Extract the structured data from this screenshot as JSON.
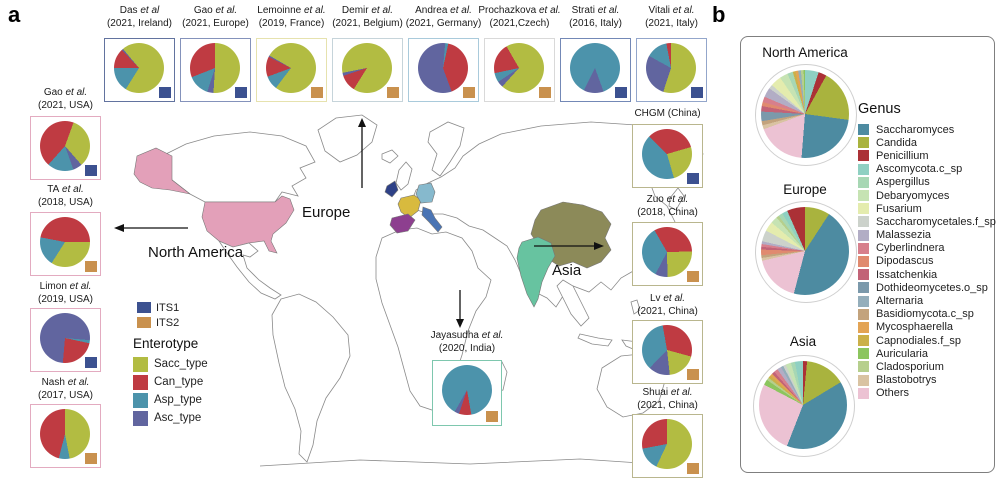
{
  "figure": {
    "panel_a_label": "a",
    "panel_b_label": "b"
  },
  "panel_a": {
    "map_labels": {
      "europe": "Europe",
      "north_america": "North America",
      "asia": "Asia"
    },
    "map_countries": [
      {
        "id": "usa",
        "color": "#e3a0b9"
      },
      {
        "id": "alaska",
        "color": "#e3a0b9"
      },
      {
        "id": "ireland",
        "color": "#2e4187"
      },
      {
        "id": "france",
        "color": "#d8ba3e"
      },
      {
        "id": "germany",
        "color": "#86b9cd"
      },
      {
        "id": "spain",
        "color": "#8d3f8f"
      },
      {
        "id": "italy",
        "color": "#4a74b4"
      },
      {
        "id": "china",
        "color": "#8c8a59"
      },
      {
        "id": "india",
        "color": "#67c3a0"
      }
    ],
    "its_legend": {
      "items": [
        {
          "label": "ITS1",
          "color": "#3c5190"
        },
        {
          "label": "ITS2",
          "color": "#c9914e"
        }
      ]
    },
    "enterotype_legend": {
      "title": "Enterotype",
      "items": [
        {
          "label": "Sacc_type",
          "color": "#b2bc42"
        },
        {
          "label": "Can_type",
          "color": "#bf3b42"
        },
        {
          "label": "Asp_type",
          "color": "#4c93ab"
        },
        {
          "label": "Asc_type",
          "color": "#61659f"
        }
      ]
    },
    "studies_top": [
      {
        "name": "Das",
        "etal": "et al",
        "line2": "(2021, Ireland)",
        "border": "#62739f",
        "its": "ITS1",
        "chart": 0
      },
      {
        "name": "Gao",
        "etal": "et al.",
        "line2": "(2021, Europe)",
        "border": "#8492bb",
        "its": "ITS1",
        "chart": 1
      },
      {
        "name": "Lemoinne",
        "etal": "et al.",
        "line2": "(2019, France)",
        "border": "#e6e2ae",
        "its": "ITS2",
        "chart": 2
      },
      {
        "name": "Demir",
        "etal": "et al.",
        "line2": "(2021, Belgium)",
        "border": "#c6d4da",
        "its": "ITS2",
        "chart": 3
      },
      {
        "name": "Andrea",
        "etal": "et al.",
        "line2": "(2021, Germany)",
        "border": "#a9cadb",
        "its": "ITS2",
        "chart": 4
      },
      {
        "name": "Prochazkova",
        "etal": "et al.",
        "line2": "(2021,Czech)",
        "border": "#d9d9d9",
        "its": "ITS2",
        "chart": 5
      },
      {
        "name": "Strati",
        "etal": "et al.",
        "line2": "(2016, Italy)",
        "border": "#7388b6",
        "its": "ITS1",
        "chart": 6
      },
      {
        "name": "Vitali",
        "etal": "et al.",
        "line2": "(2021, Italy)",
        "border": "#93a6cb",
        "its": "ITS1",
        "chart": 7
      }
    ],
    "studies_left": [
      {
        "name": "Gao",
        "etal": "et al.",
        "line2": "(2021, USA)",
        "border": "#e3abc0",
        "its": "ITS1",
        "chart": 8
      },
      {
        "name": "TA",
        "etal": "et al.",
        "line2": "(2018, USA)",
        "border": "#e3abc0",
        "its": "ITS2",
        "chart": 9
      },
      {
        "name": "Limon",
        "etal": "et al.",
        "line2": "(2019, USA)",
        "border": "#e3abc0",
        "its": "ITS1",
        "chart": 10
      },
      {
        "name": "Nash",
        "etal": "et al.",
        "line2": "(2017, USA)",
        "border": "#e3abc0",
        "its": "ITS2",
        "chart": 11
      }
    ],
    "studies_right": [
      {
        "name": "CHGM (China)",
        "etal": "",
        "line2": "",
        "border": "#b9b68e",
        "its": "ITS1",
        "chart": 12
      },
      {
        "name": "Zuo",
        "etal": "et al.",
        "line2": "(2018, China)",
        "border": "#b9b68e",
        "its": "ITS2",
        "chart": 13
      },
      {
        "name": "Lv",
        "etal": "et al.",
        "line2": "(2021, China)",
        "border": "#b9b68e",
        "its": "ITS2",
        "chart": 14
      },
      {
        "name": "Shuai",
        "etal": "et al.",
        "line2": "(2021, China)",
        "border": "#b9b68e",
        "its": "ITS2",
        "chart": 15
      }
    ],
    "study_india": {
      "name": "Jayasudha",
      "etal": "et al.",
      "line2": "(2020, India)",
      "border": "#7ec7ae",
      "its": "ITS2",
      "chart": 16
    }
  },
  "panel_b": {
    "genus_legend": {
      "title": "Genus",
      "items": [
        {
          "label": "Saccharomyces",
          "color": "#4d8ba1"
        },
        {
          "label": "Candida",
          "color": "#a9b33e"
        },
        {
          "label": "Penicillium",
          "color": "#ab3136"
        },
        {
          "label": "Ascomycota.c_sp",
          "color": "#8fd0c2"
        },
        {
          "label": "Aspergillus",
          "color": "#a7d7b4"
        },
        {
          "label": "Debaryomyces",
          "color": "#c6e3b3"
        },
        {
          "label": "Fusarium",
          "color": "#e4ecae"
        },
        {
          "label": "Saccharomycetales.f_sp",
          "color": "#ccd2cb"
        },
        {
          "label": "Malassezia",
          "color": "#b2adc5"
        },
        {
          "label": "Cyberlindnera",
          "color": "#d77f8c"
        },
        {
          "label": "Dipodascus",
          "color": "#e08a6f"
        },
        {
          "label": "Issatchenkia",
          "color": "#c26377"
        },
        {
          "label": "Dothideomycetes.o_sp",
          "color": "#7b99ab"
        },
        {
          "label": "Alternaria",
          "color": "#94aebb"
        },
        {
          "label": "Basidiomycota.c_sp",
          "color": "#c3a37d"
        },
        {
          "label": "Mycosphaerella",
          "color": "#e3a455"
        },
        {
          "label": "Capnodiales.f_sp",
          "color": "#cbb049"
        },
        {
          "label": "Auricularia",
          "color": "#8cc55e"
        },
        {
          "label": "Cladosporium",
          "color": "#b6cf8d"
        },
        {
          "label": "Blastobotrys",
          "color": "#d9c3a2"
        },
        {
          "label": "Others",
          "color": "#ecc2d3"
        }
      ]
    },
    "pies": [
      {
        "title": "North America",
        "chart": 17
      },
      {
        "title": "Europe",
        "chart": 18
      },
      {
        "title": "Asia",
        "chart": 19
      }
    ]
  },
  "chart_data": [
    {
      "type": "pie",
      "title": "Das et al (2021, Ireland)",
      "palette": "enterotype",
      "rotation_deg": 320,
      "labels": [
        "Sacc_type",
        "Asp_type",
        "Can_type",
        "Asc_type"
      ],
      "values": [
        70,
        16,
        13,
        1
      ]
    },
    {
      "type": "pie",
      "title": "Gao et al. (2021, Europe)",
      "palette": "enterotype",
      "rotation_deg": 0,
      "labels": [
        "Sacc_type",
        "Asc_type",
        "Asp_type",
        "Can_type"
      ],
      "values": [
        51,
        4,
        14,
        31
      ]
    },
    {
      "type": "pie",
      "title": "Lemoinne et al. (2019, France)",
      "palette": "enterotype",
      "rotation_deg": 300,
      "labels": [
        "Sacc_type",
        "Asp_type",
        "Can_type",
        "Asc_type"
      ],
      "values": [
        77,
        9,
        13,
        1
      ]
    },
    {
      "type": "pie",
      "title": "Demir et al. (2021, Belgium)",
      "palette": "enterotype",
      "rotation_deg": 212,
      "labels": [
        "Can_type",
        "Asc_type",
        "Sacc_type"
      ],
      "values": [
        11,
        2,
        87
      ]
    },
    {
      "type": "pie",
      "title": "Andrea et al. (2021, Germany)",
      "palette": "enterotype",
      "rotation_deg": 5,
      "labels": [
        "Asp_type",
        "Can_type",
        "Asc_type"
      ],
      "values": [
        2,
        41,
        57
      ]
    },
    {
      "type": "pie",
      "title": "Prochazkova et al. (2021,Czech)",
      "palette": "enterotype",
      "rotation_deg": 330,
      "labels": [
        "Sacc_type",
        "Asc_type",
        "Asp_type",
        "Can_type"
      ],
      "values": [
        70,
        4,
        6,
        20
      ]
    },
    {
      "type": "pie",
      "title": "Strati et al. (2016, Italy)",
      "palette": "enterotype",
      "rotation_deg": 160,
      "labels": [
        "Asc_type",
        "Asp_type"
      ],
      "values": [
        13,
        87
      ]
    },
    {
      "type": "pie",
      "title": "Vitali et al. (2021, Italy)",
      "palette": "enterotype",
      "rotation_deg": 0,
      "labels": [
        "Sacc_type",
        "Asc_type",
        "Asp_type",
        "Can_type"
      ],
      "values": [
        55,
        28,
        14,
        3
      ]
    },
    {
      "type": "pie",
      "title": "Gao et al. (2021, USA)",
      "palette": "enterotype",
      "rotation_deg": 20,
      "labels": [
        "Sacc_type",
        "Asc_type",
        "Asp_type",
        "Can_type"
      ],
      "values": [
        33,
        6,
        17,
        44
      ]
    },
    {
      "type": "pie",
      "title": "TA et al. (2018, USA)",
      "palette": "enterotype",
      "rotation_deg": 90,
      "labels": [
        "Sacc_type",
        "Asp_type",
        "Can_type"
      ],
      "values": [
        34,
        19,
        47
      ]
    },
    {
      "type": "pie",
      "title": "Limon et al. (2019, USA)",
      "palette": "enterotype",
      "rotation_deg": 95,
      "labels": [
        "Asp_type",
        "Can_type",
        "Asc_type"
      ],
      "values": [
        2,
        23,
        75
      ]
    },
    {
      "type": "pie",
      "title": "Nash et al. (2017, USA)",
      "palette": "enterotype",
      "rotation_deg": 0,
      "labels": [
        "Sacc_type",
        "Asp_type",
        "Can_type"
      ],
      "values": [
        47,
        7,
        46
      ]
    },
    {
      "type": "pie",
      "title": "CHGM (China)",
      "palette": "enterotype",
      "rotation_deg": 315,
      "labels": [
        "Can_type",
        "Sacc_type",
        "Asp_type"
      ],
      "values": [
        33,
        25,
        42
      ]
    },
    {
      "type": "pie",
      "title": "Zuo et al. (2018, China)",
      "palette": "enterotype",
      "rotation_deg": 330,
      "labels": [
        "Can_type",
        "Sacc_type",
        "Asc_type",
        "Asp_type"
      ],
      "values": [
        33,
        25,
        8,
        34
      ]
    },
    {
      "type": "pie",
      "title": "Lv et al. (2021, China)",
      "palette": "enterotype",
      "rotation_deg": 350,
      "labels": [
        "Can_type",
        "Sacc_type",
        "Asc_type",
        "Asp_type"
      ],
      "values": [
        32,
        19,
        14,
        35
      ]
    },
    {
      "type": "pie",
      "title": "Shuai et al. (2021, China)",
      "palette": "enterotype",
      "rotation_deg": 0,
      "labels": [
        "Sacc_type",
        "Asp_type",
        "Can_type"
      ],
      "values": [
        57,
        15,
        28
      ]
    },
    {
      "type": "pie",
      "title": "Jayasudha et al. (2020, India)",
      "palette": "enterotype",
      "rotation_deg": 170,
      "labels": [
        "Can_type",
        "Asc_type",
        "Asp_type"
      ],
      "values": [
        8,
        3,
        89
      ]
    },
    {
      "type": "pie",
      "title": "North America",
      "palette": "genus",
      "rotation_deg": 0,
      "labels": [
        "Ascomycota.c_sp",
        "Penicillium",
        "Candida",
        "Saccharomyces",
        "Others",
        "Blastobotrys",
        "Basidiomycota.c_sp",
        "Dothideomycetes.o_sp",
        "Issatchenkia",
        "Dipodascus",
        "Cyberlindnera",
        "Malassezia",
        "Saccharomycetales.f_sp",
        "Fusarium",
        "Debaryomyces",
        "Aspergillus",
        "Capnodiales.f_sp",
        "Mycosphaerella",
        "Alternaria",
        "Cladosporium",
        "Auricularia"
      ],
      "values": [
        5,
        3,
        19,
        24,
        18,
        1.5,
        1.5,
        3.5,
        2,
        1.5,
        2,
        3.5,
        1.5,
        4,
        3,
        2,
        1,
        1,
        1,
        1,
        0.5
      ]
    },
    {
      "type": "pie",
      "title": "Europe",
      "palette": "genus",
      "rotation_deg": 0,
      "labels": [
        "Candida",
        "Saccharomyces",
        "Others",
        "Blastobotrys",
        "Basidiomycota.c_sp",
        "Dipodascus",
        "Issatchenkia",
        "Cyberlindnera",
        "Malassezia",
        "Saccharomycetales.f_sp",
        "Fusarium",
        "Debaryomyces",
        "Cladosporium",
        "Aspergillus",
        "Ascomycota.c_sp",
        "Penicillium"
      ],
      "values": [
        9,
        44,
        17,
        1,
        1,
        2,
        1,
        1,
        1,
        4,
        3.5,
        2.5,
        1,
        1.5,
        2,
        6.5
      ]
    },
    {
      "type": "pie",
      "title": "Asia",
      "palette": "genus",
      "rotation_deg": 0,
      "labels": [
        "Penicillium",
        "Candida",
        "Saccharomyces",
        "Others",
        "Auricularia",
        "Cladosporium",
        "Capnodiales.f_sp",
        "Mycosphaerella",
        "Issatchenkia",
        "Cyberlindnera",
        "Malassezia",
        "Alternaria",
        "Saccharomycetales.f_sp",
        "Debaryomyces",
        "Aspergillus",
        "Ascomycota.c_sp"
      ],
      "values": [
        1.5,
        15,
        40,
        27,
        2,
        1,
        1,
        1,
        1,
        1.5,
        1.5,
        1,
        1,
        2,
        1.5,
        3
      ]
    }
  ]
}
